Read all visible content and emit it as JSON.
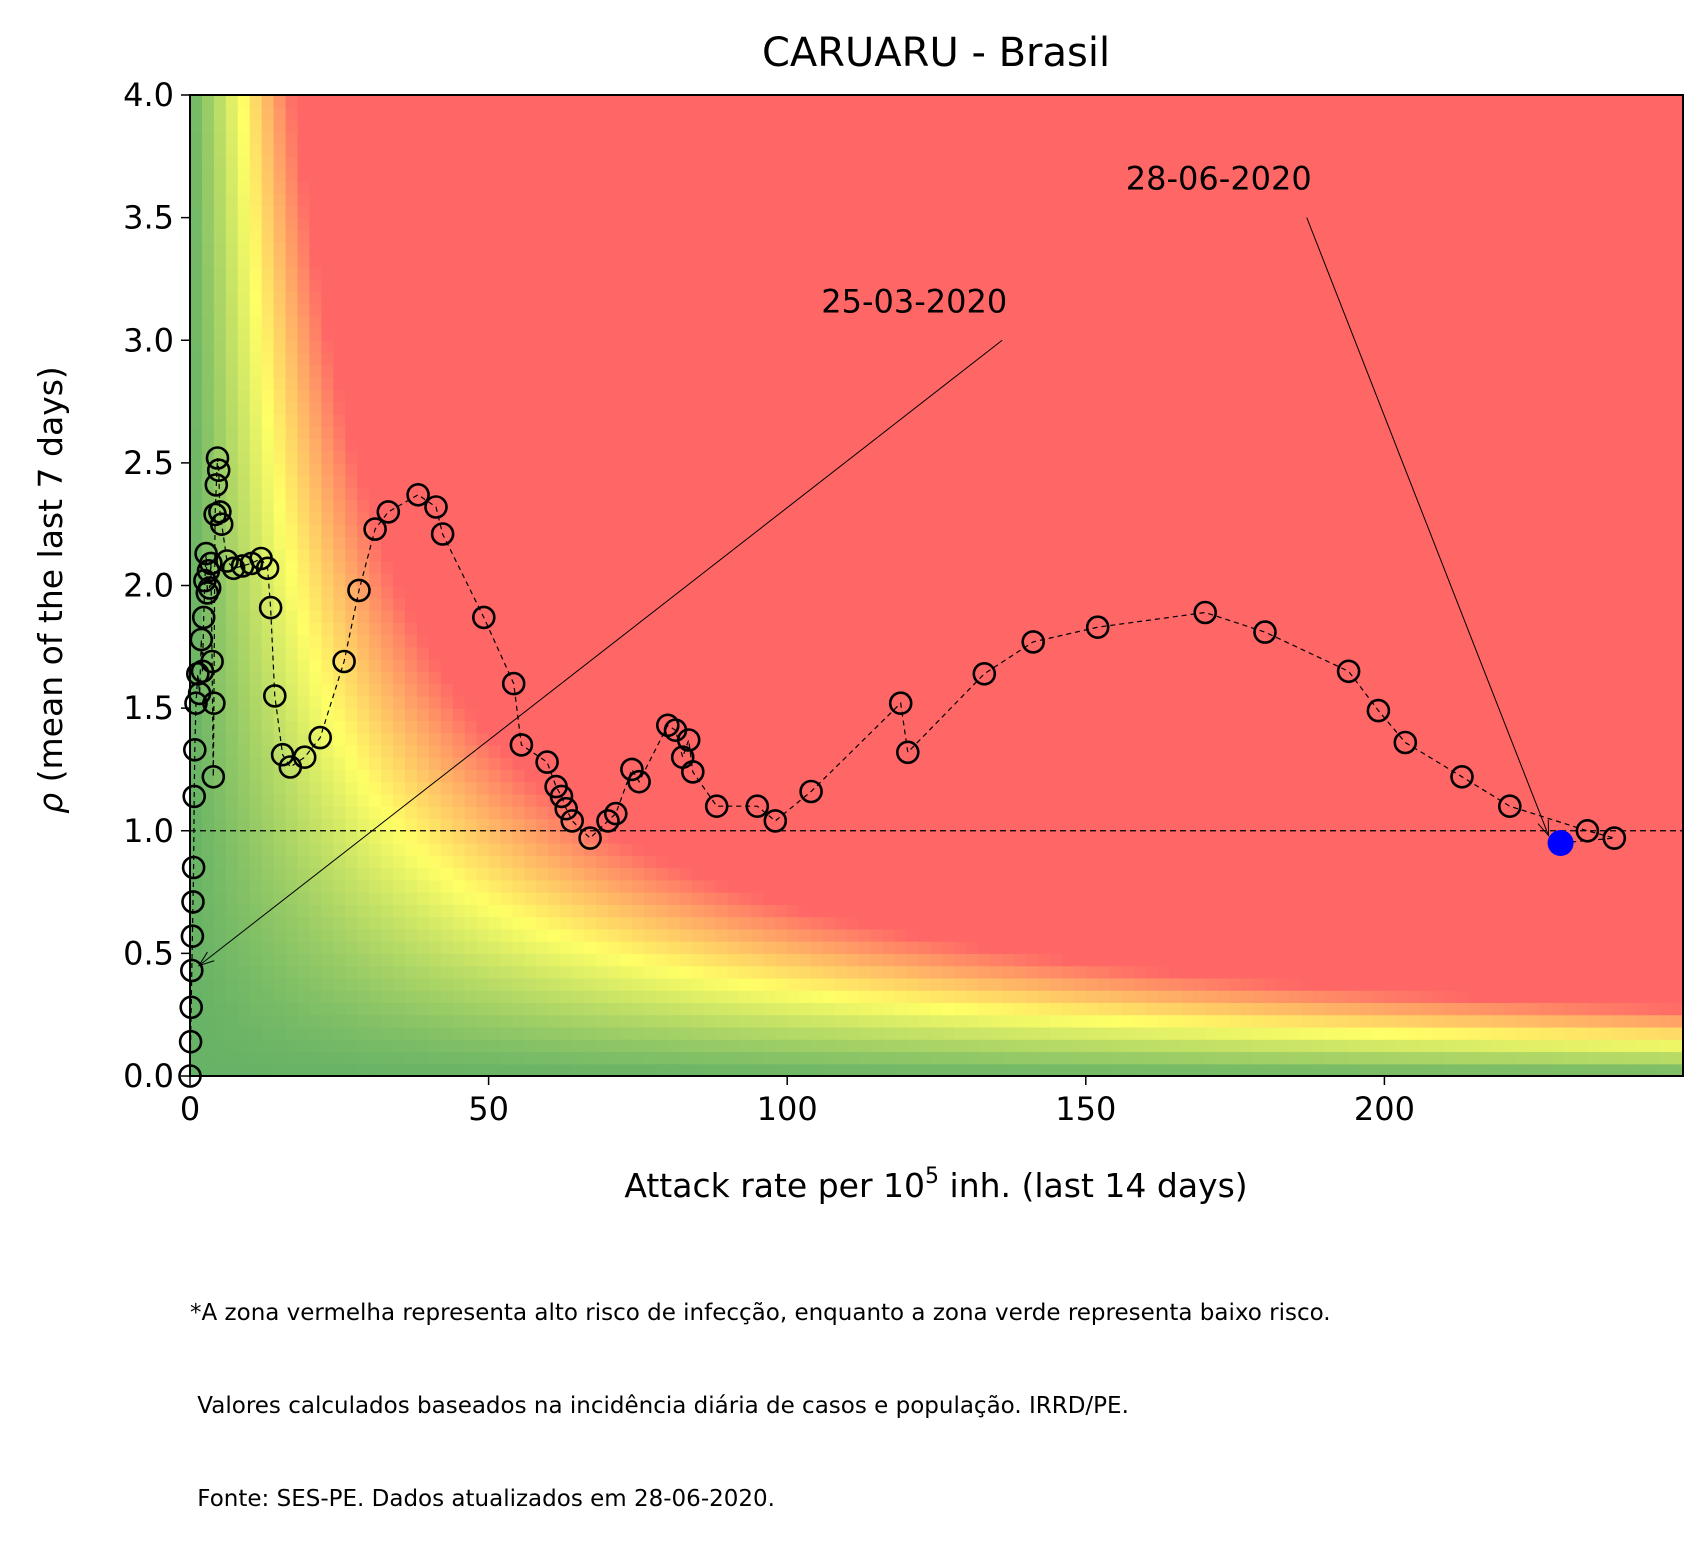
{
  "chart_data": {
    "type": "scatter",
    "title": "CARUARU - Brasil",
    "xlabel": {
      "prefix": "Attack rate per 10",
      "sup": "5",
      "suffix": " inh. (last 14 days)"
    },
    "ylabel": {
      "symbol": "ρ",
      "text": " (mean of the last 7 days)"
    },
    "xlim": [
      0,
      250
    ],
    "ylim": [
      0,
      4.0
    ],
    "xticks": [
      0,
      50,
      100,
      150,
      200
    ],
    "xtick_labels": [
      "0",
      "50",
      "100",
      "150",
      "200"
    ],
    "yticks": [
      0.0,
      0.5,
      1.0,
      1.5,
      2.0,
      2.5,
      3.0,
      3.5,
      4.0
    ],
    "ytick_labels": [
      "0.0",
      "0.5",
      "1.0",
      "1.5",
      "2.0",
      "2.5",
      "3.0",
      "3.5",
      "4.0"
    ],
    "reference_line": {
      "y": 1.0,
      "style": "dashed"
    },
    "background": {
      "zones": [
        "green (low risk)",
        "yellow",
        "red (high risk)"
      ],
      "colors": {
        "green": "#66b266",
        "yellow": "#ffff66",
        "red": "#ff6666"
      }
    },
    "series": [
      {
        "style": "hollow circles, dashed connecting line",
        "color": "#000000",
        "x": [
          0.0,
          0.1,
          0.2,
          0.3,
          0.4,
          0.5,
          0.6,
          0.7,
          0.8,
          1.0,
          1.3,
          1.6,
          1.9,
          2.1,
          2.3,
          2.5,
          2.7,
          2.9,
          3.1,
          3.3,
          3.5,
          3.7,
          3.9,
          4.0,
          4.2,
          4.4,
          4.6,
          4.8,
          5.0,
          5.3,
          6.2,
          7.3,
          8.8,
          10.3,
          11.9,
          13.0,
          13.5,
          14.2,
          15.5,
          16.8,
          19.2,
          21.8,
          25.8,
          28.3,
          31.0,
          33.2,
          38.2,
          41.2,
          42.3,
          49.2,
          54.2,
          55.5,
          59.8,
          61.3,
          62.2,
          63.0,
          64.0,
          67.0,
          70.0,
          71.3,
          74.0,
          75.2,
          80.0,
          81.3,
          82.5,
          83.5,
          84.2,
          88.2,
          95.0,
          98.0,
          104.0,
          119.0,
          120.2,
          133.0,
          141.2,
          152.0,
          170.0,
          180.0,
          194.0,
          199.0,
          203.5,
          213.0,
          221.0,
          234.0,
          238.5
        ],
        "y": [
          0.0,
          0.14,
          0.28,
          0.43,
          0.57,
          0.71,
          0.85,
          1.14,
          1.33,
          1.52,
          1.64,
          1.56,
          1.78,
          1.65,
          1.87,
          2.02,
          2.13,
          1.97,
          2.06,
          1.99,
          2.09,
          1.69,
          1.22,
          1.52,
          2.29,
          2.41,
          2.52,
          2.47,
          2.3,
          2.25,
          2.1,
          2.07,
          2.08,
          2.09,
          2.11,
          2.07,
          1.91,
          1.55,
          1.31,
          1.26,
          1.3,
          1.38,
          1.69,
          1.98,
          2.23,
          2.3,
          2.37,
          2.32,
          2.21,
          1.87,
          1.6,
          1.35,
          1.28,
          1.18,
          1.14,
          1.09,
          1.04,
          0.97,
          1.04,
          1.07,
          1.25,
          1.2,
          1.43,
          1.41,
          1.3,
          1.37,
          1.24,
          1.1,
          1.1,
          1.04,
          1.16,
          1.52,
          1.32,
          1.64,
          1.77,
          1.83,
          1.89,
          1.81,
          1.65,
          1.49,
          1.36,
          1.22,
          1.1,
          1.0,
          0.97
        ]
      }
    ],
    "highlight_point": {
      "x": 229.5,
      "y": 0.95,
      "color": "#0000ff"
    },
    "annotations": [
      {
        "text": "25-03-2020",
        "text_x": 136,
        "text_y": 3.0,
        "point_x": 1.5,
        "point_y": 0.45
      },
      {
        "text": "28-06-2020",
        "text_x": 187,
        "text_y": 3.5,
        "point_x": 227.5,
        "point_y": 0.98
      }
    ]
  },
  "footnote": {
    "line1": "*A zona vermelha representa alto risco de infecção, enquanto a zona verde representa baixo risco.",
    "line2": " Valores calculados baseados na incidência diária de casos e população. IRRD/PE.",
    "line3": " Fonte: SES-PE. Dados atualizados em 28-06-2020."
  }
}
